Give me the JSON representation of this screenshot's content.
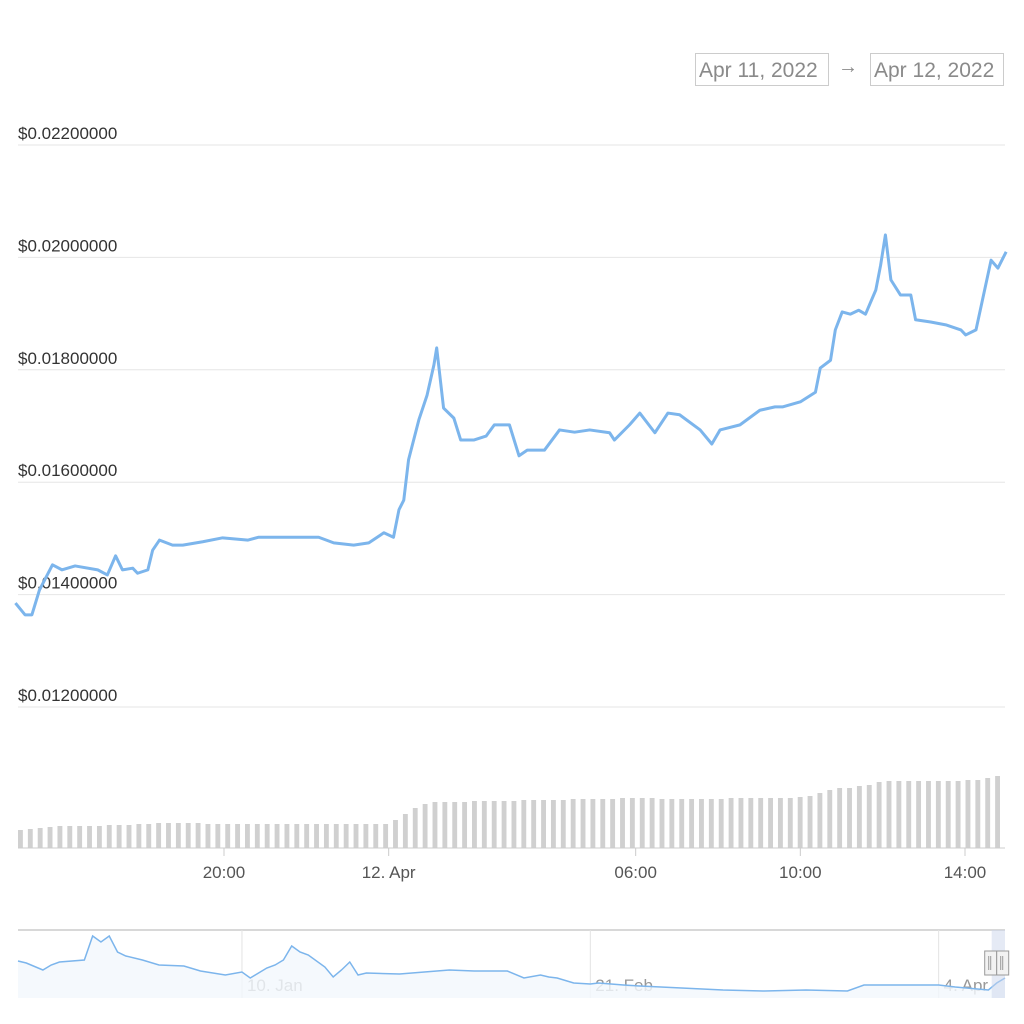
{
  "range_selector": {
    "from": "Apr 11, 2022",
    "arrow": "→",
    "to": "Apr 12, 2022"
  },
  "colors": {
    "line": "#7cb5ec",
    "grid": "#e6e6e6",
    "volume": "#d0d0d0",
    "navigator_fill": "#f3f8fd",
    "navigator_handle": "#ccd6eb"
  },
  "chart_data": {
    "type": "line",
    "title": "",
    "ylim": [
      0.012,
      0.022
    ],
    "y_ticks": [
      "$0.02200000",
      "$0.02000000",
      "$0.01800000",
      "$0.01600000",
      "$0.01400000",
      "$0.01200000"
    ],
    "y_tick_values": [
      0.022,
      0.02,
      0.018,
      0.016,
      0.014,
      0.012
    ],
    "x_ticks": [
      {
        "label": "20:00",
        "t": "2022-04-11T20:00"
      },
      {
        "label": "12. Apr",
        "t": "2022-04-12T00:00"
      },
      {
        "label": "06:00",
        "t": "2022-04-12T06:00"
      },
      {
        "label": "10:00",
        "t": "2022-04-12T10:00"
      },
      {
        "label": "14:00",
        "t": "2022-04-12T14:00"
      }
    ],
    "grid": true,
    "series": [
      {
        "points": [
          [
            "2022-04-11T14:56",
            0.01385
          ],
          [
            "2022-04-11T15:10",
            0.01364
          ],
          [
            "2022-04-11T15:20",
            0.01364
          ],
          [
            "2022-04-11T15:31",
            0.01408
          ],
          [
            "2022-04-11T15:50",
            0.01453
          ],
          [
            "2022-04-11T16:04",
            0.01444
          ],
          [
            "2022-04-11T16:23",
            0.01451
          ],
          [
            "2022-04-11T16:56",
            0.01444
          ],
          [
            "2022-04-11T17:10",
            0.01435
          ],
          [
            "2022-04-11T17:22",
            0.01469
          ],
          [
            "2022-04-11T17:32",
            0.01444
          ],
          [
            "2022-04-11T17:47",
            0.01447
          ],
          [
            "2022-04-11T17:54",
            0.01438
          ],
          [
            "2022-04-11T18:09",
            0.01444
          ],
          [
            "2022-04-11T18:16",
            0.01479
          ],
          [
            "2022-04-11T18:26",
            0.01497
          ],
          [
            "2022-04-11T18:45",
            0.01488
          ],
          [
            "2022-04-11T19:00",
            0.01488
          ],
          [
            "2022-04-11T19:29",
            0.01494
          ],
          [
            "2022-04-11T19:58",
            0.01501
          ],
          [
            "2022-04-11T20:35",
            0.01497
          ],
          [
            "2022-04-11T20:50",
            0.01502
          ],
          [
            "2022-04-11T21:34",
            0.01502
          ],
          [
            "2022-04-11T22:18",
            0.01502
          ],
          [
            "2022-04-11T22:40",
            0.01492
          ],
          [
            "2022-04-11T23:09",
            0.01488
          ],
          [
            "2022-04-11T23:31",
            0.01492
          ],
          [
            "2022-04-11T23:53",
            0.0151
          ],
          [
            "2022-04-12T00:07",
            0.01502
          ],
          [
            "2022-04-12T00:15",
            0.01551
          ],
          [
            "2022-04-12T00:22",
            0.01568
          ],
          [
            "2022-04-12T00:29",
            0.0164
          ],
          [
            "2022-04-12T00:44",
            0.01711
          ],
          [
            "2022-04-12T00:56",
            0.01755
          ],
          [
            "2022-04-12T01:06",
            0.01809
          ],
          [
            "2022-04-12T01:10",
            0.01839
          ],
          [
            "2022-04-12T01:20",
            0.01732
          ],
          [
            "2022-04-12T01:35",
            0.01714
          ],
          [
            "2022-04-12T01:45",
            0.01675
          ],
          [
            "2022-04-12T02:04",
            0.01675
          ],
          [
            "2022-04-12T02:22",
            0.01682
          ],
          [
            "2022-04-12T02:34",
            0.01702
          ],
          [
            "2022-04-12T02:56",
            0.01702
          ],
          [
            "2022-04-12T03:10",
            0.01647
          ],
          [
            "2022-04-12T03:22",
            0.01657
          ],
          [
            "2022-04-12T03:47",
            0.01657
          ],
          [
            "2022-04-12T04:09",
            0.01693
          ],
          [
            "2022-04-12T04:31",
            0.01689
          ],
          [
            "2022-04-12T04:53",
            0.01693
          ],
          [
            "2022-04-12T05:22",
            0.01688
          ],
          [
            "2022-04-12T05:29",
            0.01675
          ],
          [
            "2022-04-12T05:51",
            0.01702
          ],
          [
            "2022-04-12T06:06",
            0.01723
          ],
          [
            "2022-04-12T06:28",
            0.01688
          ],
          [
            "2022-04-12T06:47",
            0.01723
          ],
          [
            "2022-04-12T07:04",
            0.0172
          ],
          [
            "2022-04-12T07:34",
            0.01693
          ],
          [
            "2022-04-12T07:51",
            0.01668
          ],
          [
            "2022-04-12T08:03",
            0.01693
          ],
          [
            "2022-04-12T08:32",
            0.01702
          ],
          [
            "2022-04-12T09:01",
            0.01728
          ],
          [
            "2022-04-12T09:23",
            0.01734
          ],
          [
            "2022-04-12T09:34",
            0.01734
          ],
          [
            "2022-04-12T10:00",
            0.01743
          ],
          [
            "2022-04-12T10:22",
            0.0176
          ],
          [
            "2022-04-12T10:29",
            0.01803
          ],
          [
            "2022-04-12T10:44",
            0.01817
          ],
          [
            "2022-04-12T10:51",
            0.01871
          ],
          [
            "2022-04-12T11:01",
            0.01903
          ],
          [
            "2022-04-12T11:13",
            0.01899
          ],
          [
            "2022-04-12T11:25",
            0.01906
          ],
          [
            "2022-04-12T11:35",
            0.01899
          ],
          [
            "2022-04-12T11:50",
            0.01942
          ],
          [
            "2022-04-12T11:57",
            0.01986
          ],
          [
            "2022-04-12T12:04",
            0.0204
          ],
          [
            "2022-04-12T12:12",
            0.0196
          ],
          [
            "2022-04-12T12:26",
            0.01933
          ],
          [
            "2022-04-12T12:41",
            0.01933
          ],
          [
            "2022-04-12T12:48",
            0.01889
          ],
          [
            "2022-04-12T13:10",
            0.01885
          ],
          [
            "2022-04-12T13:32",
            0.0188
          ],
          [
            "2022-04-12T13:54",
            0.01871
          ],
          [
            "2022-04-12T14:01",
            0.01862
          ],
          [
            "2022-04-12T14:16",
            0.01871
          ],
          [
            "2022-04-12T14:38",
            0.01995
          ],
          [
            "2022-04-12T14:48",
            0.01981
          ],
          [
            "2022-04-12T15:00",
            0.0201
          ]
        ]
      }
    ],
    "x_range": [
      "2022-04-11T14:56",
      "2022-04-12T15:00"
    ],
    "volume": [
      18,
      19,
      20,
      21,
      22,
      22,
      22,
      22,
      22,
      23,
      23,
      23,
      24,
      24,
      25,
      25,
      25,
      25,
      25,
      24,
      24,
      24,
      24,
      24,
      24,
      24,
      24,
      24,
      24,
      24,
      24,
      24,
      24,
      24,
      24,
      24,
      24,
      24,
      28,
      34,
      40,
      44,
      46,
      46,
      46,
      46,
      47,
      47,
      47,
      47,
      47,
      48,
      48,
      48,
      48,
      48,
      49,
      49,
      49,
      49,
      49,
      50,
      50,
      50,
      50,
      49,
      49,
      49,
      49,
      49,
      49,
      49,
      50,
      50,
      50,
      50,
      50,
      50,
      50,
      51,
      52,
      55,
      58,
      60,
      60,
      62,
      63,
      66,
      67,
      67,
      67,
      67,
      67,
      67,
      67,
      67,
      68,
      68,
      70,
      72
    ],
    "navigator": {
      "x_ticks": [
        {
          "label": "10. Jan",
          "t": "2022-01-10"
        },
        {
          "label": "21. Feb",
          "t": "2022-02-21"
        },
        {
          "label": "4. Apr",
          "t": "2022-04-04"
        }
      ],
      "x_range": [
        "2021-12-14",
        "2022-04-12"
      ],
      "selected": [
        "2022-04-11",
        "2022-04-12"
      ],
      "points": [
        [
          "2021-12-14",
          37
        ],
        [
          "2021-12-15",
          35
        ],
        [
          "2021-12-17",
          28
        ],
        [
          "2021-12-18",
          33
        ],
        [
          "2021-12-19",
          36
        ],
        [
          "2021-12-22",
          38
        ],
        [
          "2021-12-23",
          62
        ],
        [
          "2021-12-24",
          56
        ],
        [
          "2021-12-25",
          62
        ],
        [
          "2021-12-26",
          46
        ],
        [
          "2021-12-27",
          42
        ],
        [
          "2021-12-29",
          38
        ],
        [
          "2021-12-31",
          33
        ],
        [
          "2022-01-03",
          32
        ],
        [
          "2022-01-05",
          27
        ],
        [
          "2022-01-08",
          23
        ],
        [
          "2022-01-10",
          26
        ],
        [
          "2022-01-11",
          20
        ],
        [
          "2022-01-13",
          30
        ],
        [
          "2022-01-14",
          33
        ],
        [
          "2022-01-15",
          38
        ],
        [
          "2022-01-16",
          52
        ],
        [
          "2022-01-17",
          46
        ],
        [
          "2022-01-18",
          43
        ],
        [
          "2022-01-20",
          31
        ],
        [
          "2022-01-21",
          21
        ],
        [
          "2022-01-22",
          28
        ],
        [
          "2022-01-23",
          36
        ],
        [
          "2022-01-24",
          23
        ],
        [
          "2022-01-25",
          25
        ],
        [
          "2022-01-29",
          24
        ],
        [
          "2022-02-01",
          26
        ],
        [
          "2022-02-04",
          28
        ],
        [
          "2022-02-07",
          27
        ],
        [
          "2022-02-11",
          27
        ],
        [
          "2022-02-13",
          20
        ],
        [
          "2022-02-15",
          23
        ],
        [
          "2022-02-16",
          21
        ],
        [
          "2022-02-17",
          20
        ],
        [
          "2022-02-19",
          15
        ],
        [
          "2022-02-21",
          14
        ],
        [
          "2022-02-22",
          15
        ],
        [
          "2022-02-25",
          13
        ],
        [
          "2022-02-27",
          12
        ],
        [
          "2022-03-04",
          10
        ],
        [
          "2022-03-09",
          8
        ],
        [
          "2022-03-14",
          7
        ],
        [
          "2022-03-19",
          8
        ],
        [
          "2022-03-24",
          7
        ],
        [
          "2022-03-26",
          13
        ],
        [
          "2022-03-31",
          13
        ],
        [
          "2022-04-04",
          13
        ],
        [
          "2022-04-06",
          11
        ],
        [
          "2022-04-10",
          8
        ],
        [
          "2022-04-11",
          15
        ],
        [
          "2022-04-12",
          20
        ]
      ]
    }
  }
}
